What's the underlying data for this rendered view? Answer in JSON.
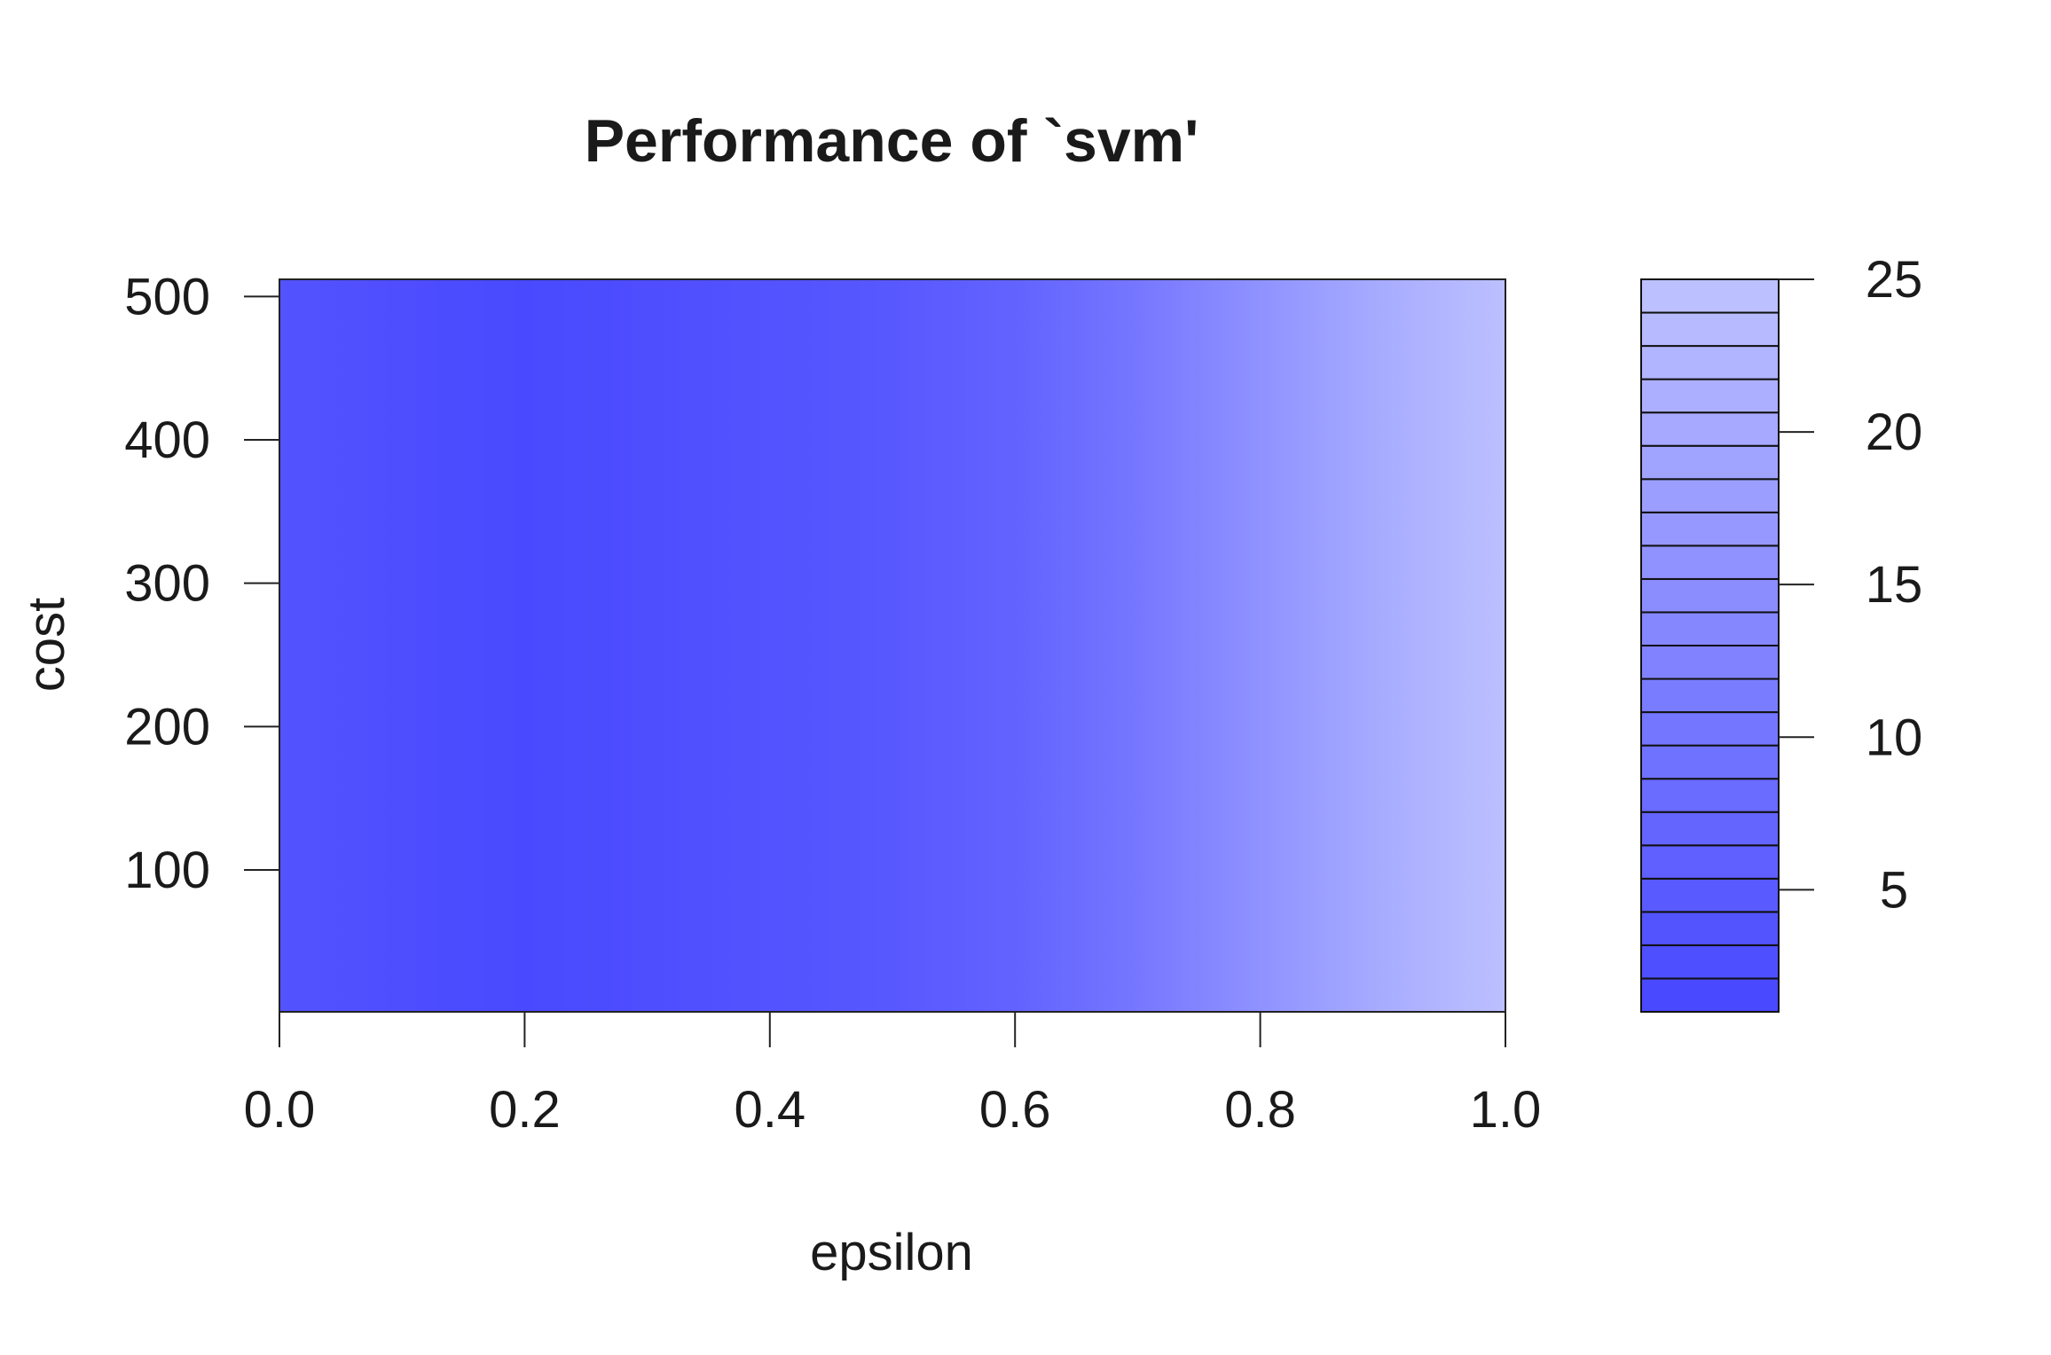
{
  "chart_data": {
    "type": "heatmap",
    "title": "Performance of `svm'",
    "xlabel": "epsilon",
    "ylabel": "cost",
    "xlim": [
      0.0,
      1.0
    ],
    "ylim": [
      1,
      512
    ],
    "x_ticks": [
      "0.0",
      "0.2",
      "0.4",
      "0.6",
      "0.8",
      "1.0"
    ],
    "y_ticks": [
      "100",
      "200",
      "300",
      "400",
      "500"
    ],
    "legend": {
      "placement": "right",
      "ticks": [
        "5",
        "10",
        "15",
        "20",
        "25"
      ],
      "range": [
        1,
        25
      ],
      "levels": 22,
      "low_color": "#4646ff",
      "high_color": "#bfc3ff"
    },
    "x": [
      0.0,
      0.1,
      0.2,
      0.3,
      0.4,
      0.5,
      0.6,
      0.7,
      0.8,
      0.9,
      1.0
    ],
    "values": [
      3.5,
      2.5,
      1.5,
      2.5,
      3.5,
      4.5,
      6.5,
      10.5,
      15.5,
      20.5,
      24.5
    ]
  }
}
